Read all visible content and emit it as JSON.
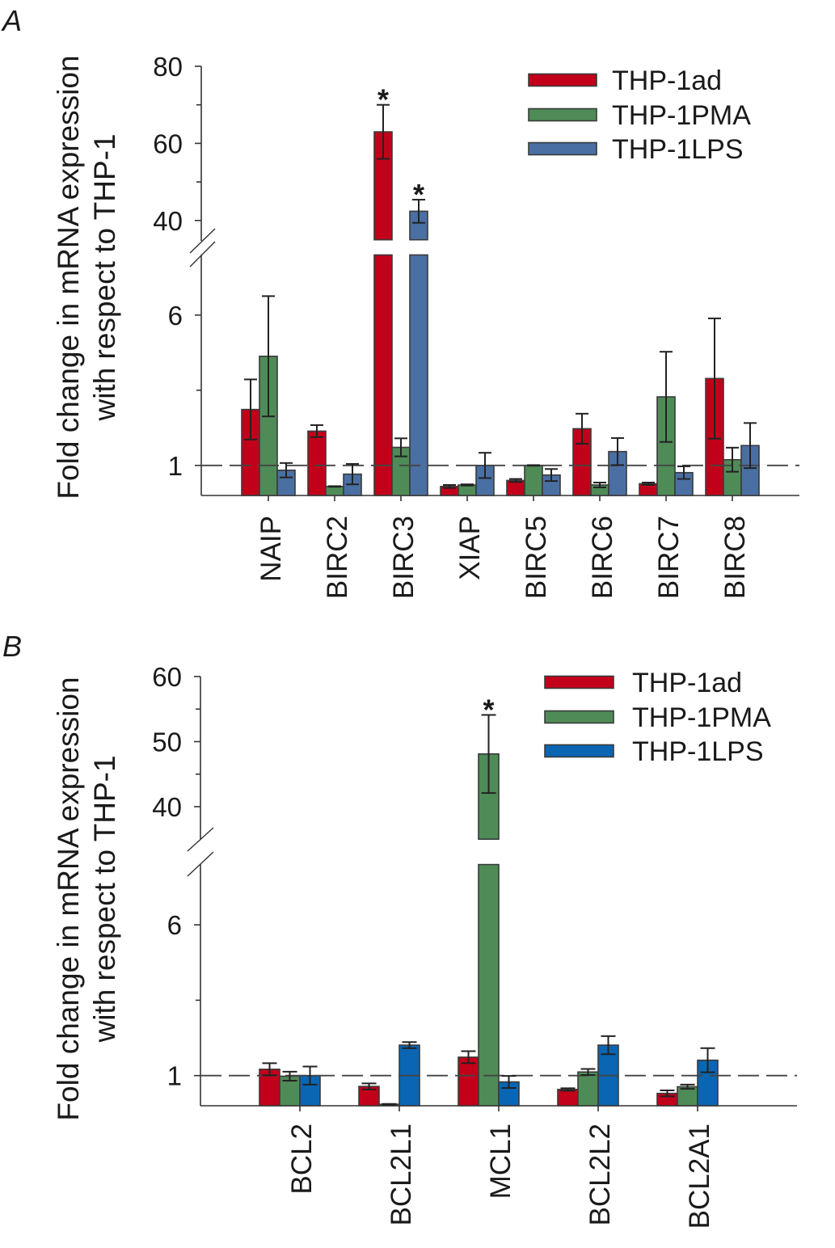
{
  "chart_data": [
    {
      "panel_label": "A",
      "type": "bar",
      "title": "",
      "xlabel": "",
      "ylabel_lines": [
        "Fold change in mRNA expression",
        "with respect to THP-1"
      ],
      "categories": [
        "NAIP",
        "BIRC2",
        "BIRC3",
        "XIAP",
        "BIRC5",
        "BIRC6",
        "BIRC7",
        "BIRC8"
      ],
      "series": [
        {
          "name": "THP-1ad",
          "color": "#c3001a",
          "values": [
            2.86,
            2.14,
            63.0,
            0.3,
            0.5,
            2.22,
            0.39,
            3.89
          ],
          "errors": [
            1.0,
            0.2,
            7.0,
            0.05,
            0.05,
            0.5,
            0.04,
            2.0
          ]
        },
        {
          "name": "THP-1PMA",
          "color": "#4f8b57",
          "values": [
            4.63,
            0.3,
            1.6,
            0.35,
            1.0,
            0.35,
            3.28,
            1.19
          ],
          "errors": [
            2.0,
            0.01,
            0.3,
            0.02,
            0.01,
            0.08,
            1.5,
            0.4
          ]
        },
        {
          "name": "THP-1LPS",
          "color": "#4a6fa3",
          "values": [
            0.84,
            0.71,
            42.4,
            1.0,
            0.68,
            1.46,
            0.76,
            1.66
          ],
          "errors": [
            0.24,
            0.34,
            3.0,
            0.42,
            0.2,
            0.45,
            0.21,
            0.75
          ]
        }
      ],
      "y_axis": {
        "scale": "broken",
        "lower_range": [
          0,
          8
        ],
        "upper_range": [
          35,
          80
        ],
        "major_ticks": [
          1,
          6,
          40,
          60,
          80
        ],
        "minor_ticks": [
          3.5,
          50,
          70
        ]
      },
      "reference_line": {
        "y": 1,
        "style": "dashed"
      },
      "significance": [
        {
          "category": "BIRC3",
          "series": "THP-1ad",
          "marker": "*"
        },
        {
          "category": "BIRC3",
          "series": "THP-1LPS",
          "marker": "*"
        }
      ],
      "legend": {
        "position": "top-right"
      },
      "grid": false
    },
    {
      "panel_label": "B",
      "type": "bar",
      "title": "",
      "xlabel": "",
      "ylabel_lines": [
        "Fold change in mRNA expression",
        "with respect to THP-1"
      ],
      "categories": [
        "BCL2",
        "BCL2L1",
        "MCL1",
        "BCL2L2",
        "BCL2A1"
      ],
      "series": [
        {
          "name": "THP-1ad",
          "color": "#c3001a",
          "values": [
            1.21,
            0.64,
            1.61,
            0.54,
            0.41
          ],
          "errors": [
            0.2,
            0.1,
            0.2,
            0.04,
            0.1
          ]
        },
        {
          "name": "THP-1PMA",
          "color": "#4f8b57",
          "values": [
            0.98,
            0.05,
            48.1,
            1.12,
            0.63
          ],
          "errors": [
            0.15,
            0.01,
            6.0,
            0.1,
            0.07
          ]
        },
        {
          "name": "THP-1LPS",
          "color": "#0a66b3",
          "values": [
            1.0,
            2.01,
            0.79,
            2.01,
            1.51
          ],
          "errors": [
            0.3,
            0.1,
            0.2,
            0.3,
            0.4
          ]
        }
      ],
      "y_axis": {
        "scale": "broken",
        "lower_range": [
          0,
          8
        ],
        "upper_range": [
          35,
          60
        ],
        "major_ticks": [
          1,
          6,
          40,
          50,
          60
        ],
        "minor_ticks": [
          3.5,
          45,
          55
        ]
      },
      "reference_line": {
        "y": 1,
        "style": "dashed"
      },
      "significance": [
        {
          "category": "MCL1",
          "series": "THP-1PMA",
          "marker": "*"
        }
      ],
      "legend": {
        "position": "top-right"
      },
      "grid": false
    }
  ]
}
